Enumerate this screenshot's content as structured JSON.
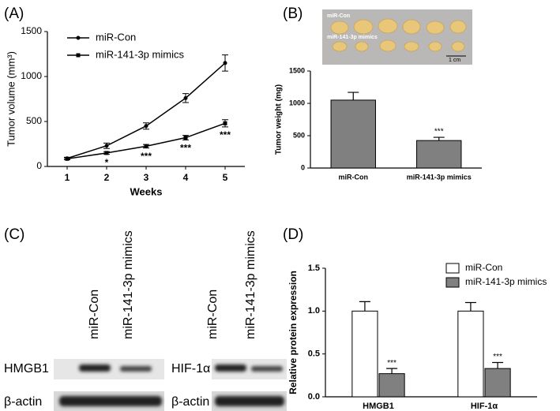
{
  "chart_data": [
    {
      "type": "line",
      "panel_label": "(A)",
      "x_label": "Weeks",
      "y_label": "Tumor volume (mm³)",
      "x": [
        1,
        2,
        3,
        4,
        5
      ],
      "xlim": [
        0.5,
        5.5
      ],
      "xticks": [
        1,
        2,
        3,
        4,
        5
      ],
      "ylim": [
        0,
        1500
      ],
      "yticks": [
        0,
        500,
        1000,
        1500
      ],
      "legend": "upper left",
      "series": [
        {
          "name": "miR-Con",
          "color": "#000000",
          "marker": "circle",
          "values": [
            90,
            230,
            450,
            760,
            1150
          ],
          "errors": [
            12,
            30,
            35,
            50,
            90
          ]
        },
        {
          "name": "miR-141-3p mimics",
          "color": "#000000",
          "marker": "square",
          "values": [
            85,
            150,
            225,
            320,
            480
          ],
          "errors": [
            10,
            15,
            20,
            25,
            40
          ]
        }
      ],
      "annotations": [
        {
          "x": 2,
          "series": "miR-141-3p mimics",
          "text": "*"
        },
        {
          "x": 3,
          "series": "miR-141-3p mimics",
          "text": "***"
        },
        {
          "x": 4,
          "series": "miR-141-3p mimics",
          "text": "***"
        },
        {
          "x": 5,
          "series": "miR-141-3p mimics",
          "text": "***"
        }
      ]
    },
    {
      "type": "bar",
      "panel_label": "(B)",
      "y_label": "Tumor weight (mg)",
      "categories": [
        "miR-Con",
        "miR-141-3p mimics"
      ],
      "values": [
        1050,
        425
      ],
      "errors": [
        120,
        50
      ],
      "color": "#808080",
      "ylim": [
        0,
        1500
      ],
      "yticks": [
        0,
        500,
        1000,
        1500
      ],
      "annotations": [
        {
          "category": "miR-141-3p mimics",
          "text": "***"
        }
      ]
    },
    {
      "type": "bar",
      "panel_label": "(D)",
      "y_label": "Relative protein expression",
      "categories": [
        "HMGB1",
        "HIF-1α"
      ],
      "series": [
        {
          "name": "miR-Con",
          "color": "#ffffff",
          "values": [
            1.0,
            1.0
          ],
          "errors": [
            0.11,
            0.1
          ]
        },
        {
          "name": "miR-141-3p mimics",
          "color": "#808080",
          "values": [
            0.27,
            0.33
          ],
          "errors": [
            0.06,
            0.07
          ]
        }
      ],
      "ylim": [
        0,
        1.5
      ],
      "yticks": [
        {
          "value": 0,
          "label": "0.0"
        },
        {
          "value": 0.5,
          "label": "0.5"
        },
        {
          "value": 1,
          "label": "1.0"
        },
        {
          "value": 1.5,
          "label": "1.5"
        }
      ],
      "legend": "upper right",
      "annotations": [
        {
          "category": "HMGB1",
          "series": "miR-141-3p mimics",
          "text": "***"
        },
        {
          "category": "HIF-1α",
          "series": "miR-141-3p mimics",
          "text": "***"
        }
      ]
    }
  ],
  "tumor_photo": {
    "row_labels": [
      "miR-Con",
      "miR-141-3p mimics"
    ],
    "scale_bar": "1 cm"
  },
  "western_blot": {
    "panel_label": "(C)",
    "blots": [
      {
        "columns": [
          "miR-Con",
          "miR-141-3p mimics"
        ],
        "rows": [
          "HMGB1",
          "β-actin"
        ]
      },
      {
        "columns": [
          "miR-Con",
          "miR-141-3p mimics"
        ],
        "rows": [
          "HIF-1α",
          "β-actin"
        ]
      }
    ]
  }
}
